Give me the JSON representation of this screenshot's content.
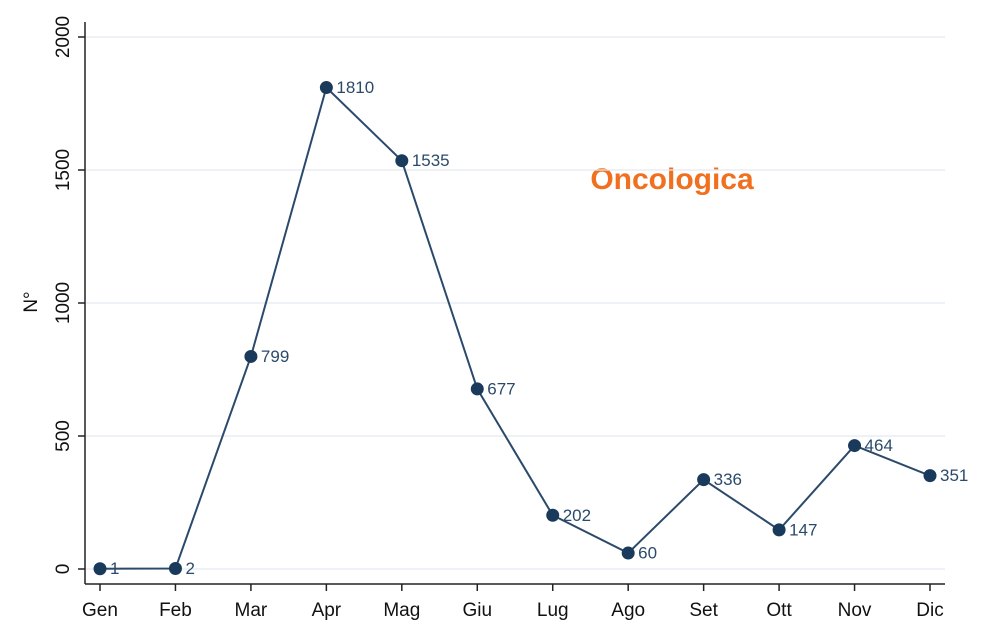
{
  "chart_data": {
    "type": "line",
    "title": "Oncologica",
    "ylabel": "N°",
    "categories": [
      "Gen",
      "Feb",
      "Mar",
      "Apr",
      "Mag",
      "Giu",
      "Lug",
      "Ago",
      "Set",
      "Ott",
      "Nov",
      "Dic"
    ],
    "series": [
      {
        "name": "Oncologica",
        "color": "#2b4a6b",
        "values": [
          1,
          2,
          799,
          1810,
          1535,
          677,
          202,
          60,
          336,
          147,
          464,
          351
        ]
      }
    ],
    "ylim": [
      0,
      2000
    ],
    "yticks": [
      0,
      500,
      1000,
      1500,
      2000
    ],
    "grid": true
  }
}
